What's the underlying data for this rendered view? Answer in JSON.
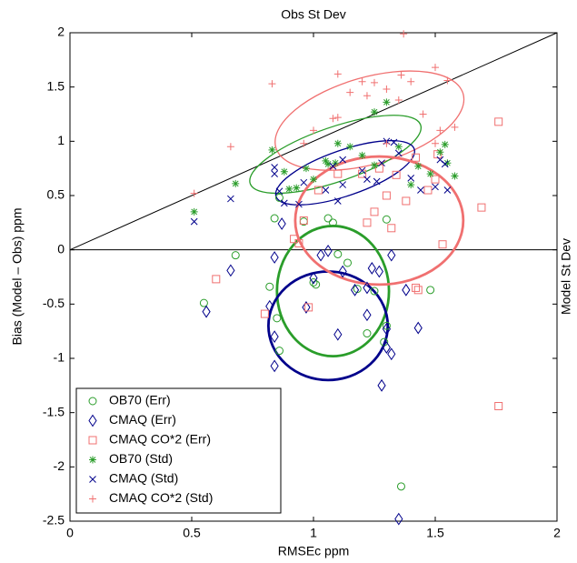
{
  "chart_data": {
    "type": "scatter",
    "title": "Obs St Dev",
    "right_label": "Model St Dev",
    "x_label": "RMSEc ppm",
    "y_label": "Bias (Model – Obs) ppm",
    "xlim": [
      0,
      2
    ],
    "ylim": [
      -2.5,
      2
    ],
    "xticks": [
      0,
      0.5,
      1,
      1.5,
      2
    ],
    "yticks": [
      -2.5,
      -2,
      -1.5,
      -1,
      -0.5,
      0,
      0.5,
      1,
      1.5,
      2
    ],
    "legend": "lower left",
    "series": [
      {
        "name": "OB70 (Err)",
        "color": "#2a9d2a",
        "marker": "circle",
        "x": [
          0.55,
          0.68,
          0.82,
          0.84,
          0.86,
          0.85,
          0.86,
          0.96,
          1.0,
          1.01,
          1.06,
          1.08,
          1.1,
          1.14,
          1.18,
          1.22,
          1.25,
          1.29,
          1.3,
          1.3,
          1.48,
          1.36
        ],
        "y": [
          -0.49,
          -0.05,
          -0.34,
          0.29,
          0.48,
          -0.63,
          -0.93,
          0.26,
          -0.3,
          -0.32,
          0.29,
          0.25,
          -0.04,
          -0.12,
          -0.36,
          -0.77,
          -0.38,
          -0.85,
          -0.7,
          0.28,
          -0.37,
          -2.18
        ]
      },
      {
        "name": "CMAQ (Err)",
        "color": "#00008b",
        "marker": "diamond",
        "x": [
          0.56,
          0.66,
          0.82,
          0.84,
          0.84,
          0.84,
          0.87,
          0.97,
          1.0,
          1.03,
          1.06,
          1.1,
          1.12,
          1.17,
          1.22,
          1.22,
          1.27,
          1.3,
          1.3,
          1.28,
          1.32,
          1.43,
          1.35,
          1.38,
          1.24,
          1.32
        ],
        "y": [
          -0.57,
          -0.19,
          -0.52,
          -1.07,
          -0.8,
          -0.07,
          0.24,
          -0.53,
          -0.26,
          -0.05,
          -0.01,
          -0.78,
          -0.2,
          -0.37,
          -0.35,
          -0.6,
          -0.2,
          -0.9,
          -0.73,
          -1.25,
          -0.96,
          -0.72,
          -2.48,
          -0.37,
          -0.17,
          -0.05
        ]
      },
      {
        "name": "CMAQ CO*2 (Err)",
        "color": "#f07070",
        "marker": "square",
        "x": [
          0.6,
          0.8,
          0.92,
          0.94,
          0.96,
          0.98,
          1.1,
          1.2,
          1.22,
          1.25,
          1.27,
          1.32,
          1.34,
          1.38,
          1.42,
          1.43,
          1.47,
          1.5,
          1.53,
          1.51,
          1.69,
          1.76,
          1.76,
          1.42,
          1.3,
          1.02
        ],
        "y": [
          -0.27,
          -0.59,
          0.1,
          0.06,
          0.27,
          -0.53,
          0.7,
          0.7,
          0.25,
          0.35,
          0.75,
          0.2,
          0.69,
          0.45,
          -0.35,
          -0.37,
          0.55,
          0.65,
          0.05,
          0.88,
          0.39,
          1.18,
          -1.44,
          0.85,
          0.5,
          0.55
        ]
      },
      {
        "name": "OB70 (Std)",
        "color": "#2a9d2a",
        "marker": "star",
        "x": [
          0.51,
          0.68,
          0.83,
          0.88,
          0.9,
          0.93,
          0.97,
          1.0,
          1.05,
          1.09,
          1.1,
          1.15,
          1.2,
          1.25,
          1.25,
          1.3,
          1.35,
          1.4,
          1.43,
          1.48,
          1.52,
          1.54,
          1.55,
          1.58,
          1.06
        ],
        "y": [
          0.35,
          0.61,
          0.92,
          0.72,
          0.56,
          0.57,
          0.75,
          0.65,
          0.82,
          0.8,
          0.98,
          0.95,
          0.87,
          0.78,
          1.27,
          1.36,
          0.95,
          0.6,
          0.77,
          0.7,
          0.9,
          0.97,
          0.8,
          0.68,
          0.79
        ]
      },
      {
        "name": "CMAQ (Std)",
        "color": "#00008b",
        "marker": "x",
        "x": [
          0.51,
          0.66,
          0.84,
          0.84,
          0.86,
          0.88,
          0.94,
          0.96,
          1.05,
          1.08,
          1.1,
          1.12,
          1.2,
          1.22,
          1.26,
          1.28,
          1.3,
          1.35,
          1.33,
          1.4,
          1.44,
          1.5,
          1.52,
          1.55,
          1.54,
          1.12
        ],
        "y": [
          0.26,
          0.47,
          0.76,
          0.7,
          0.54,
          0.43,
          0.42,
          0.62,
          0.55,
          0.77,
          0.45,
          0.6,
          0.73,
          0.65,
          0.63,
          0.8,
          1.0,
          0.89,
          0.99,
          0.66,
          0.55,
          0.58,
          0.83,
          0.55,
          0.79,
          0.83
        ]
      },
      {
        "name": "CMAQ CO*2 (Std)",
        "color": "#f07070",
        "marker": "plus",
        "x": [
          0.51,
          0.66,
          0.83,
          0.96,
          1.0,
          1.08,
          1.1,
          1.1,
          1.15,
          1.2,
          1.22,
          1.25,
          1.3,
          1.35,
          1.36,
          1.4,
          1.37,
          1.45,
          1.5,
          1.52,
          1.55,
          1.58,
          1.3,
          1.5
        ],
        "y": [
          0.52,
          0.95,
          1.53,
          0.98,
          1.1,
          1.21,
          1.62,
          1.22,
          1.45,
          1.55,
          1.42,
          1.54,
          1.48,
          1.38,
          1.61,
          1.55,
          1.99,
          1.25,
          1.68,
          1.1,
          1.56,
          1.13,
          0.98,
          0.98
        ]
      }
    ],
    "ellipses": [
      {
        "color": "#f07070",
        "cx": 1.23,
        "cy": 1.19,
        "rx": 0.4,
        "ry": 0.4,
        "angle": -16,
        "line_width": 1.3
      },
      {
        "color": "#2a9d2a",
        "cx": 1.09,
        "cy": 0.88,
        "rx": 0.37,
        "ry": 0.25,
        "angle": -19,
        "line_width": 1.3
      },
      {
        "color": "#00008b",
        "cx": 1.13,
        "cy": 0.71,
        "rx": 0.3,
        "ry": 0.21,
        "angle": -19,
        "line_width": 1.3
      },
      {
        "color": "#2a9d2a",
        "cx": 1.08,
        "cy": -0.38,
        "rx": 0.23,
        "ry": 0.6,
        "angle": 0,
        "line_width": 2.8
      },
      {
        "color": "#00008b",
        "cx": 1.06,
        "cy": -0.7,
        "rx": 0.245,
        "ry": 0.5,
        "angle": 0,
        "line_width": 2.8
      },
      {
        "color": "#f07070",
        "cx": 1.27,
        "cy": 0.27,
        "rx": 0.345,
        "ry": 0.59,
        "angle": 0,
        "line_width": 2.8
      }
    ]
  }
}
